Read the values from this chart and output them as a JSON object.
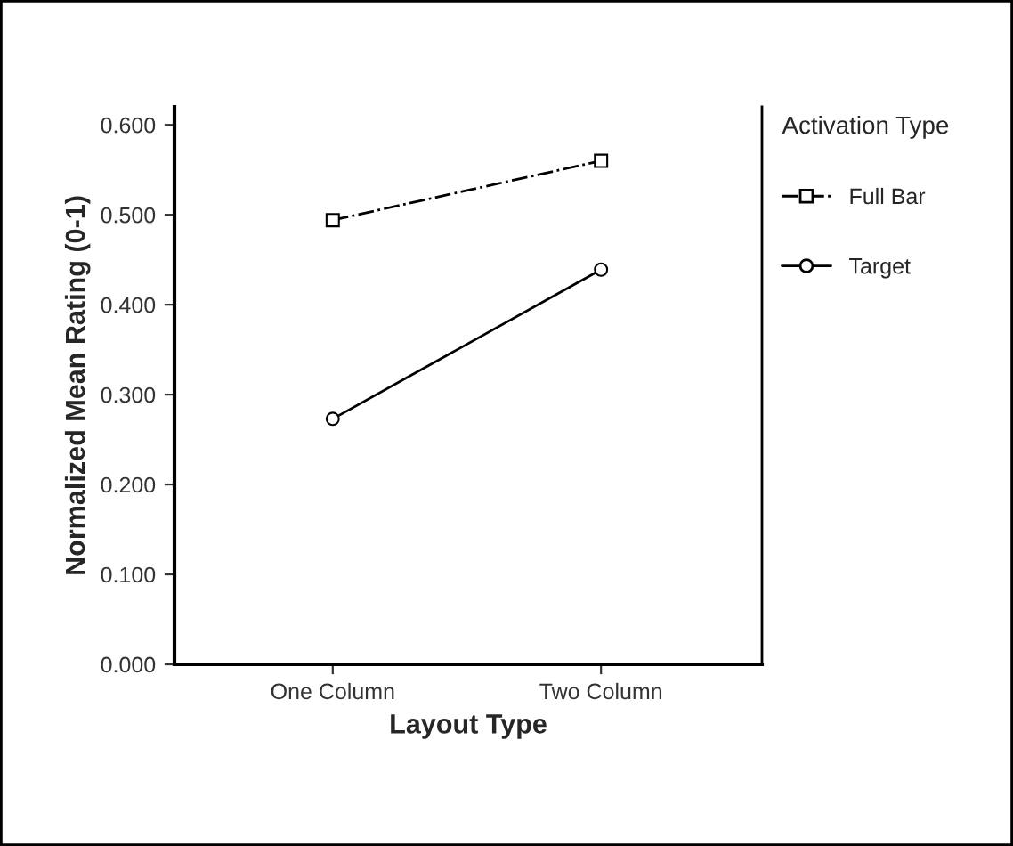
{
  "chart_data": {
    "type": "line",
    "xlabel": "Layout Type",
    "ylabel": "Normalized Mean Rating (0-1)",
    "legend_title": "Activation Type",
    "categories": [
      "One Column",
      "Two Column"
    ],
    "series": [
      {
        "name": "Full Bar",
        "color": "#000000",
        "values": [
          0.494,
          0.56
        ],
        "marker": "square",
        "line_style": "dashdot"
      },
      {
        "name": "Target",
        "color": "#000000",
        "values": [
          0.273,
          0.439
        ],
        "marker": "circle",
        "line_style": "solid"
      }
    ],
    "ylim": [
      0,
      0.62
    ],
    "yticks": [
      {
        "value": 0,
        "label": "0.000"
      },
      {
        "value": 0.1,
        "label": "0.100"
      },
      {
        "value": 0.2,
        "label": "0.200"
      },
      {
        "value": 0.3,
        "label": "0.300"
      },
      {
        "value": 0.4,
        "label": "0.400"
      },
      {
        "value": 0.5,
        "label": "0.500"
      },
      {
        "value": 0.6,
        "label": "0.600"
      }
    ],
    "grid": false,
    "legend": "right"
  }
}
